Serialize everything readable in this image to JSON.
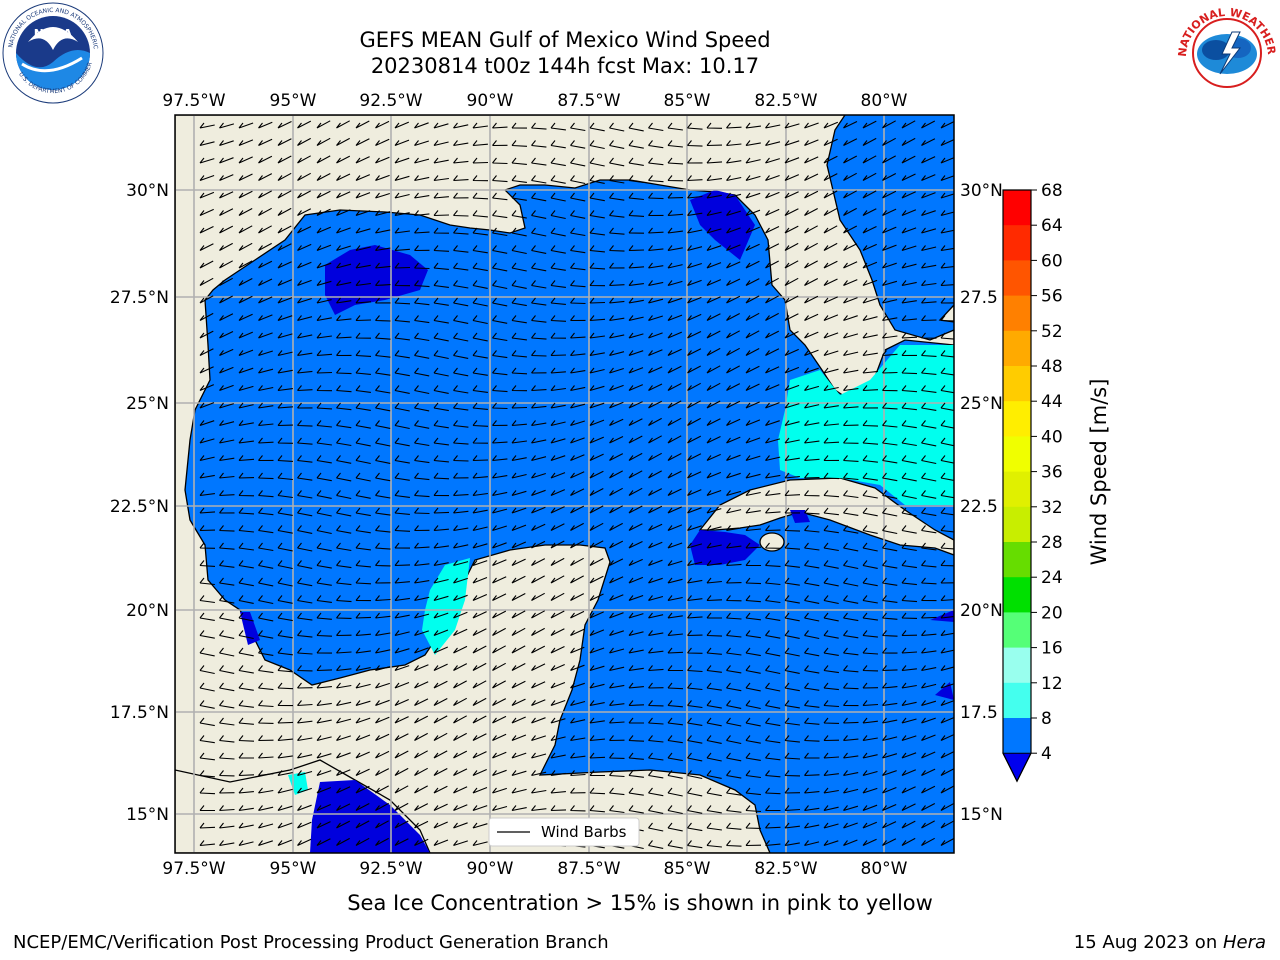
{
  "title_line1": "GEFS MEAN Gulf of Mexico Wind Speed",
  "title_line2": "20230814 t00z 144h fcst   Max: 10.17",
  "lon_ticks": [
    "97.5°W",
    "95°W",
    "92.5°W",
    "90°W",
    "87.5°W",
    "85°W",
    "82.5°W",
    "80°W"
  ],
  "lat_ticks": [
    "30°N",
    "27.5°N",
    "25°N",
    "22.5°N",
    "20°N",
    "17.5°N",
    "15°N"
  ],
  "lat_ticks_right": [
    "30°N",
    "27.5",
    "25°N",
    "22.5",
    "20°N",
    "17.5",
    "15°N"
  ],
  "colorbar": {
    "label": "Wind Speed [m/s]",
    "ticks": [
      "68",
      "64",
      "60",
      "56",
      "52",
      "48",
      "44",
      "40",
      "36",
      "32",
      "28",
      "24",
      "20",
      "16",
      "12",
      "8",
      "4"
    ],
    "colors": [
      "#ff0000",
      "#ff2a00",
      "#ff5500",
      "#ff8000",
      "#ffaa00",
      "#ffcc00",
      "#ffee00",
      "#f0ff00",
      "#e0f000",
      "#c8ee00",
      "#66dd00",
      "#00e000",
      "#55ff77",
      "#99ffee",
      "#44ffee",
      "#00ffee",
      "#0077ff"
    ],
    "under_color": "#0000ee"
  },
  "legend_label": "Wind Barbs",
  "note": "Sea Ice Concentration > 15% is shown in pink to yellow",
  "footer_left": "NCEP/EMC/Verification Post Processing Product Generation Branch",
  "footer_date": "15 Aug 2023 on ",
  "footer_machine": "Hera",
  "logos": {
    "left": "noaa-logo",
    "right": "nws-logo"
  },
  "colors": {
    "land": "#efedde",
    "ocean_main": "#0077ff",
    "ocean_light": "#00ffee",
    "ocean_dark": "#0000dd",
    "grid": "#b0b0b0"
  }
}
